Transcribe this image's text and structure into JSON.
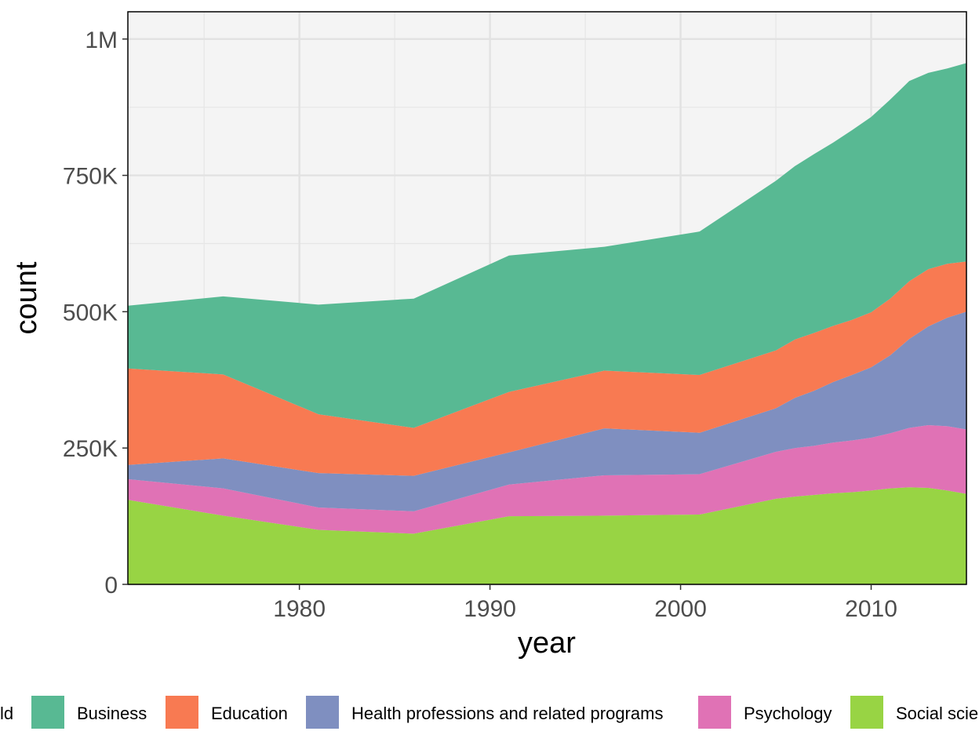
{
  "chart_data": {
    "type": "area",
    "stacked": true,
    "xlabel": "year",
    "ylabel": "count",
    "xlim": [
      1971,
      2015
    ],
    "ylim": [
      0,
      1050000
    ],
    "x_ticks": [
      1980,
      1990,
      2000,
      2010
    ],
    "x_tick_labels": [
      "1980",
      "1990",
      "2000",
      "2010"
    ],
    "y_ticks": [
      0,
      250000,
      500000,
      750000,
      1000000
    ],
    "y_tick_labels": [
      "0",
      "250K",
      "500K",
      "750K",
      "1M"
    ],
    "grid": true,
    "panel_background": "#f4f4f4",
    "legend": {
      "position": "bottom",
      "title": "field",
      "title_visible_text": "ld"
    },
    "x": [
      1971,
      1976,
      1981,
      1986,
      1991,
      1996,
      2001,
      2005,
      2006,
      2007,
      2008,
      2009,
      2010,
      2011,
      2012,
      2013,
      2014,
      2015
    ],
    "series": [
      {
        "name": "Social sciences and history",
        "color": "#98d444",
        "values": [
          155000,
          126000,
          100000,
          93000,
          125000,
          126000,
          128000,
          157000,
          161000,
          164000,
          167000,
          169000,
          172000,
          176000,
          178000,
          177000,
          172000,
          166000
        ]
      },
      {
        "name": "Psychology",
        "color": "#e072b5",
        "values": [
          38000,
          50000,
          41000,
          41000,
          58000,
          74000,
          74000,
          86000,
          89000,
          90000,
          93000,
          95000,
          97000,
          101000,
          109000,
          115000,
          118000,
          118000
        ]
      },
      {
        "name": "Health professions and related programs",
        "color": "#7f8fc0",
        "values": [
          26000,
          55000,
          63000,
          65000,
          59000,
          86000,
          76000,
          80000,
          92000,
          101000,
          111000,
          120000,
          129000,
          143000,
          163000,
          181000,
          199000,
          216000
        ]
      },
      {
        "name": "Education",
        "color": "#f87a52",
        "values": [
          177000,
          154000,
          108000,
          88000,
          111000,
          106000,
          106000,
          106000,
          107000,
          106000,
          103000,
          101000,
          101000,
          104000,
          106000,
          105000,
          99000,
          92000
        ]
      },
      {
        "name": "Business",
        "color": "#58b993",
        "values": [
          115000,
          143000,
          201000,
          237000,
          250000,
          227000,
          263000,
          311000,
          318000,
          328000,
          336000,
          348000,
          358000,
          365000,
          367000,
          360000,
          358000,
          364000
        ]
      }
    ],
    "legend_order": [
      "Business",
      "Education",
      "Health professions and related programs",
      "Psychology",
      "Social sciences and history"
    ],
    "legend_visible_text": [
      "Business",
      "Education",
      "Health professions and related programs",
      "Psychology",
      "Social scie"
    ]
  }
}
